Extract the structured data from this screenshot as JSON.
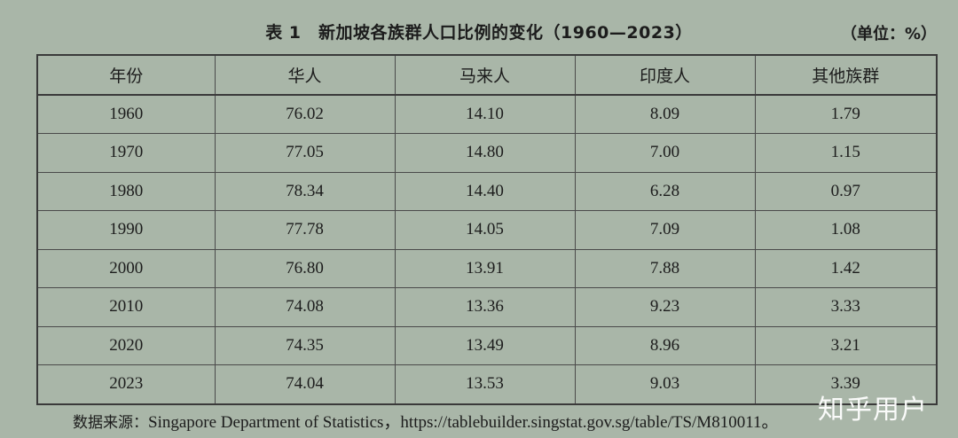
{
  "title": "表 1　新加坡各族群人口比例的变化（1960—2023）",
  "unit": "（单位：%）",
  "table": {
    "headers": [
      "年份",
      "华人",
      "马来人",
      "印度人",
      "其他族群"
    ],
    "rows": [
      [
        "1960",
        "76.02",
        "14.10",
        "8.09",
        "1.79"
      ],
      [
        "1970",
        "77.05",
        "14.80",
        "7.00",
        "1.15"
      ],
      [
        "1980",
        "78.34",
        "14.40",
        "6.28",
        "0.97"
      ],
      [
        "1990",
        "77.78",
        "14.05",
        "7.09",
        "1.08"
      ],
      [
        "2000",
        "76.80",
        "13.91",
        "7.88",
        "1.42"
      ],
      [
        "2010",
        "74.08",
        "13.36",
        "9.23",
        "3.33"
      ],
      [
        "2020",
        "74.35",
        "13.49",
        "8.96",
        "3.21"
      ],
      [
        "2023",
        "74.04",
        "13.53",
        "9.03",
        "3.39"
      ]
    ]
  },
  "source": {
    "label": "数据来源：",
    "text": "Singapore Department of Statistics，https://tablebuilder.singstat.gov.sg/table/TS/M810011。"
  },
  "watermark": "知乎用户"
}
